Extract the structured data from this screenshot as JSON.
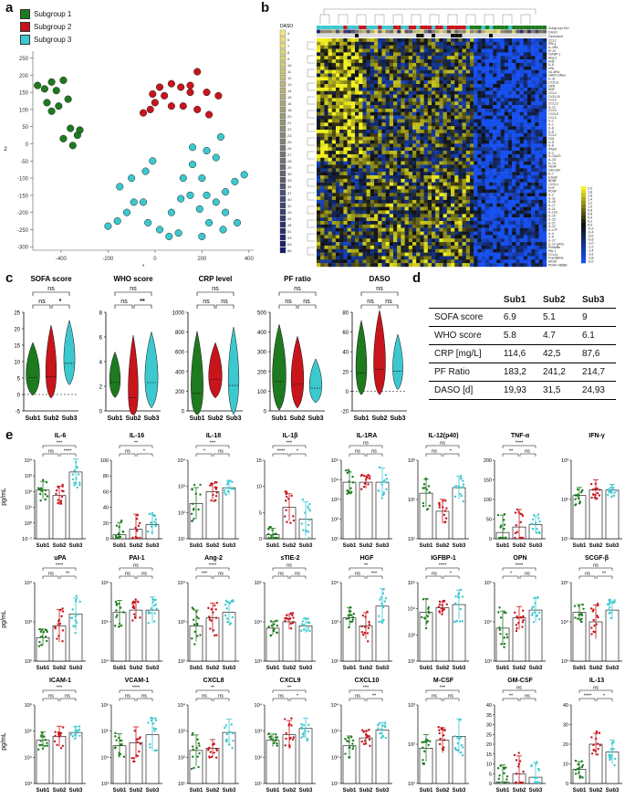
{
  "panel_labels": {
    "a": "a",
    "b": "b",
    "c": "c",
    "d": "d",
    "e": "e"
  },
  "colors": {
    "sub1": "#1e7a1e",
    "sub2": "#c8141b",
    "sub3": "#3cc8cf"
  },
  "panel_a": {
    "legend": [
      "Subgroup 1",
      "Subgroup 2",
      "Subgroup 3"
    ],
    "xlabel": "1",
    "ylabel": "2",
    "xticks": [
      "-400",
      "-200",
      "0",
      "200",
      "400"
    ],
    "yticks": [
      "250",
      "200",
      "150",
      "100",
      "50",
      "0",
      "-50",
      "-100",
      "-150",
      "-200",
      "-250",
      "-300"
    ],
    "chart_data": {
      "type": "scatter",
      "xlim": [
        -520,
        420
      ],
      "ylim": [
        -310,
        270
      ],
      "series": [
        {
          "name": "Subgroup 1",
          "color": "#1e7a1e",
          "points": [
            [
              -500,
              170
            ],
            [
              -470,
              160
            ],
            [
              -440,
              180
            ],
            [
              -420,
              155
            ],
            [
              -460,
              120
            ],
            [
              -410,
              110
            ],
            [
              -440,
              95
            ],
            [
              -390,
              185
            ],
            [
              -370,
              130
            ],
            [
              -360,
              45
            ],
            [
              -330,
              25
            ],
            [
              -390,
              15
            ],
            [
              -350,
              -5
            ],
            [
              -320,
              40
            ]
          ]
        },
        {
          "name": "Subgroup 2",
          "color": "#c8141b",
          "points": [
            [
              -50,
              90
            ],
            [
              -20,
              100
            ],
            [
              0,
              120
            ],
            [
              -10,
              145
            ],
            [
              20,
              165
            ],
            [
              70,
              175
            ],
            [
              110,
              165
            ],
            [
              150,
              150
            ],
            [
              70,
              110
            ],
            [
              120,
              110
            ],
            [
              180,
              100
            ],
            [
              230,
              85
            ],
            [
              270,
              140
            ],
            [
              220,
              150
            ],
            [
              180,
              210
            ],
            [
              150,
              170
            ],
            [
              40,
              140
            ]
          ]
        },
        {
          "name": "Subgroup 3",
          "color": "#3cc8cf",
          "points": [
            [
              -10,
              -50
            ],
            [
              -40,
              -80
            ],
            [
              -100,
              -100
            ],
            [
              -150,
              -125
            ],
            [
              -90,
              -170
            ],
            [
              -50,
              -170
            ],
            [
              -120,
              -200
            ],
            [
              -160,
              -225
            ],
            [
              -200,
              -240
            ],
            [
              -30,
              -230
            ],
            [
              20,
              -250
            ],
            [
              60,
              -270
            ],
            [
              100,
              -260
            ],
            [
              70,
              -200
            ],
            [
              110,
              -160
            ],
            [
              150,
              -150
            ],
            [
              120,
              -100
            ],
            [
              160,
              -60
            ],
            [
              200,
              -100
            ],
            [
              220,
              -150
            ],
            [
              190,
              -190
            ],
            [
              230,
              -230
            ],
            [
              290,
              -250
            ],
            [
              300,
              -200
            ],
            [
              260,
              -170
            ],
            [
              300,
              -140
            ],
            [
              340,
              -110
            ],
            [
              380,
              -90
            ],
            [
              260,
              -40
            ],
            [
              220,
              -20
            ],
            [
              280,
              20
            ],
            [
              350,
              -230
            ],
            [
              160,
              -10
            ],
            [
              200,
              -270
            ]
          ]
        }
      ]
    }
  },
  "panel_b": {
    "daso_title": "DASO",
    "daso_levels": [
      "4",
      "6",
      "7",
      "8",
      "9",
      "10",
      "11",
      "12",
      "13",
      "14",
      "15",
      "16",
      "18",
      "20",
      "21",
      "22",
      "23",
      "25",
      "26",
      "27",
      "28",
      "29",
      "30",
      "33",
      "34",
      "37",
      "40",
      "42",
      "43",
      "44",
      "48",
      "51",
      "53",
      "63",
      "66"
    ],
    "header_rows": [
      "Subgroup KIU",
      "DASO",
      "Deceased"
    ],
    "gene_labels": [
      "CCL2",
      "IFN-γ",
      "IL-1RA",
      "IP-10",
      "IGFBP-1",
      "Ang-2",
      "HGF",
      "IL-6",
      "uPA",
      "sIL-6Rα",
      "sHER-2/Neu",
      "IL-31",
      "CXCL5",
      "OPN",
      "NGF",
      "CCL4",
      "CXCL10",
      "CCL4",
      "CCL13",
      "IL-12",
      "CCL5",
      "CXCL9",
      "CCL3",
      "IL-1",
      "IL-1",
      "IL-8",
      "IL-8",
      "CCL2",
      "CD1",
      "IL-8",
      "IL-8",
      "IFNα2",
      "IL-2",
      "IL-12p70",
      "IL-15",
      "IL-7a",
      "VEGF",
      "GM-CSF",
      "IL-7",
      "b-NGF",
      "BDNF",
      "CXCL1",
      "FGF",
      "PDGF",
      "IL-2",
      "IL-11",
      "IL-16",
      "IL-17",
      "IL-21",
      "IL-12a",
      "IL-15",
      "IL-23",
      "IL-27",
      "IL-12",
      "IL-17F",
      "IL-4",
      "IL-9",
      "IL-17",
      "IL-12 (p40)",
      "Prolactin",
      "PAI-1",
      "CCL11",
      "Fractalkine",
      "MCSF",
      "PDGF-AB/BB"
    ],
    "colorbar_ticks": [
      "2,0",
      "1,8",
      "1,6",
      "1,4",
      "1,2",
      "1,0",
      "0,8",
      "0,6",
      "0,4",
      "0,2",
      "0,0",
      "-0,2",
      "-0,4",
      "-0,6",
      "-0,8",
      "-1,0",
      "-1,2",
      "-1,4",
      "-1,6",
      "-1,8",
      "-2,0"
    ],
    "colors": {
      "high": "#f3f021",
      "mid": "#101010",
      "low": "#1650f0"
    }
  },
  "panel_c": {
    "xcats": [
      "Sub1",
      "Sub2",
      "Sub3"
    ],
    "charts": [
      {
        "title": "SOFA score",
        "yticks": [
          "25",
          "20",
          "15",
          "10",
          "5",
          "0",
          "-5"
        ],
        "ylim": [
          -5,
          25
        ],
        "top": "ns",
        "left": "ns",
        "right": "*"
      },
      {
        "title": "WHO score",
        "yticks": [
          "8",
          "6",
          "4",
          "2",
          "0"
        ],
        "ylim": [
          0,
          8
        ],
        "top": "ns",
        "left": "ns",
        "right": "**"
      },
      {
        "title": "CRP level",
        "yticks": [
          "1000",
          "800",
          "600",
          "400",
          "200",
          "0"
        ],
        "ylim": [
          0,
          1000
        ],
        "top": "ns",
        "left": "ns",
        "right": "ns"
      },
      {
        "title": "PF ratio",
        "yticks": [
          "500",
          "400",
          "300",
          "200",
          "100",
          "0"
        ],
        "ylim": [
          0,
          500
        ],
        "top": "ns",
        "left": "ns",
        "right": "ns"
      },
      {
        "title": "DASO",
        "yticks": [
          "80",
          "60",
          "40",
          "20",
          "0",
          "-20"
        ],
        "ylim": [
          -20,
          80
        ],
        "top": "ns",
        "left": "ns",
        "right": "ns"
      }
    ]
  },
  "panel_d": {
    "headers": [
      "",
      "Sub1",
      "Sub2",
      "Sub3"
    ],
    "rows": [
      [
        "SOFA score",
        "6.9",
        "5.1",
        "9"
      ],
      [
        "WHO score",
        "5.8",
        "4.7",
        "6.1"
      ],
      [
        "CRP [mg/L]",
        "114,6",
        "42,5",
        "87,6"
      ],
      [
        "PF Ratio",
        "183,2",
        "241,2",
        "214,7"
      ],
      [
        "DASO [d]",
        "19,93",
        "31,5",
        "24,93"
      ]
    ]
  },
  "panel_e": {
    "ylabel": "pg/mL",
    "xcats": [
      "Sub1",
      "Sub2",
      "Sub3"
    ],
    "rows": [
      [
        {
          "title": "IL-6",
          "yticks": [
            "10⁴",
            "10³",
            "10²",
            "10¹",
            "10⁰",
            "10⁻¹"
          ],
          "bars": [
            0.62,
            0.55,
            0.85
          ],
          "top": "***",
          "left": "ns",
          "right": "****"
        },
        {
          "title": "IL-16",
          "yticks": [
            "100",
            "80",
            "60",
            "40",
            "20",
            "0"
          ],
          "bars": [
            0.05,
            0.12,
            0.18
          ],
          "top": "**",
          "left": "ns",
          "right": "*"
        },
        {
          "title": "IL-18",
          "yticks": [
            "10⁴",
            "10³",
            "10²",
            "10¹"
          ],
          "bars": [
            0.45,
            0.6,
            0.65
          ],
          "top": "***",
          "left": "*",
          "right": "ns"
        },
        {
          "title": "IL-1β",
          "yticks": [
            "15",
            "10",
            "5",
            "0"
          ],
          "bars": [
            0.05,
            0.4,
            0.25
          ],
          "top": "***",
          "left": "****",
          "right": "*"
        },
        {
          "title": "IL-1RA",
          "yticks": [
            "10⁵",
            "10⁴",
            "10³",
            "10²",
            "10¹"
          ],
          "bars": [
            0.72,
            0.72,
            0.72
          ],
          "top": "ns",
          "left": "ns",
          "right": "ns"
        },
        {
          "title": "IL-12(p40)",
          "yticks": [
            "10³",
            "10²",
            "10¹"
          ],
          "bars": [
            0.58,
            0.35,
            0.65
          ],
          "top": "ns",
          "left": "ns",
          "right": "*"
        },
        {
          "title": "TNF-α",
          "yticks": [
            "200",
            "150",
            "100",
            "50",
            "0"
          ],
          "bars": [
            0.08,
            0.15,
            0.18
          ],
          "top": "****",
          "left": "**",
          "right": "ns"
        },
        {
          "title": "IFN-γ",
          "yticks": [
            "10³",
            "10²",
            "10¹"
          ],
          "bars": [
            0.55,
            0.62,
            0.62
          ],
          "top": "",
          "left": "",
          "right": ""
        }
      ],
      [
        {
          "title": "uPA",
          "yticks": [
            "10⁴",
            "10³",
            "10²"
          ],
          "bars": [
            0.3,
            0.45,
            0.6
          ],
          "top": "****",
          "left": "ns",
          "right": "**"
        },
        {
          "title": "PAI-1",
          "yticks": [
            "10⁶",
            "10⁵",
            "10⁴"
          ],
          "bars": [
            0.62,
            0.65,
            0.65
          ],
          "top": "ns",
          "left": "ns",
          "right": "ns"
        },
        {
          "title": "Ang-2",
          "yticks": [
            "10⁴",
            "10³",
            "10²"
          ],
          "bars": [
            0.45,
            0.55,
            0.62
          ],
          "top": "****",
          "left": "***",
          "right": "ns"
        },
        {
          "title": "sTIE-2",
          "yticks": [
            "10⁵",
            "10⁴",
            "10³"
          ],
          "bars": [
            0.42,
            0.5,
            0.45
          ],
          "top": "ns",
          "left": "ns",
          "right": "ns"
        },
        {
          "title": "HGF",
          "yticks": [
            "10⁴",
            "10³",
            "10²"
          ],
          "bars": [
            0.55,
            0.45,
            0.7
          ],
          "top": "**",
          "left": "ns",
          "right": "***"
        },
        {
          "title": "IGFBP-1",
          "yticks": [
            "10⁵",
            "10⁴",
            "10³",
            "10²"
          ],
          "bars": [
            0.62,
            0.68,
            0.72
          ],
          "top": "****",
          "left": "ns",
          "right": "*"
        },
        {
          "title": "OPN",
          "yticks": [
            "10⁵",
            "10⁴",
            "10³"
          ],
          "bars": [
            0.42,
            0.55,
            0.65
          ],
          "top": "****",
          "left": "*",
          "right": "ns"
        },
        {
          "title": "SCGF-β",
          "yticks": [
            "10⁵",
            "10⁴",
            "10³"
          ],
          "bars": [
            0.62,
            0.5,
            0.65
          ],
          "top": "ns",
          "left": "ns",
          "right": "**"
        }
      ],
      [
        {
          "title": "ICAM-1",
          "yticks": [
            "10⁶",
            "10⁵",
            "10⁴",
            "10³"
          ],
          "bars": [
            0.55,
            0.6,
            0.65
          ],
          "top": "***",
          "left": "ns",
          "right": "ns"
        },
        {
          "title": "VCAM-1",
          "yticks": [
            "10⁶",
            "10⁵",
            "10⁴",
            "10³"
          ],
          "bars": [
            0.48,
            0.52,
            0.62
          ],
          "top": "****",
          "left": "ns",
          "right": "ns"
        },
        {
          "title": "CXCL8",
          "yticks": [
            "10⁴",
            "10³",
            "10²",
            "10¹"
          ],
          "bars": [
            0.42,
            0.45,
            0.65
          ],
          "top": "**",
          "left": "ns",
          "right": "ns"
        },
        {
          "title": "CXCL9",
          "yticks": [
            "10⁴",
            "10³",
            "10²",
            "10¹"
          ],
          "bars": [
            0.55,
            0.62,
            0.7
          ],
          "top": "**",
          "left": "ns",
          "right": "*"
        },
        {
          "title": "CXCL10",
          "yticks": [
            "10⁴",
            "10³",
            "10²",
            "10¹"
          ],
          "bars": [
            0.48,
            0.58,
            0.68
          ],
          "top": "***",
          "left": "ns",
          "right": "**"
        },
        {
          "title": "M-CSF",
          "yticks": [
            "10³",
            "10²",
            "10¹"
          ],
          "bars": [
            0.45,
            0.55,
            0.6
          ],
          "top": "***",
          "left": "ns",
          "right": "ns"
        },
        {
          "title": "GM-CSF",
          "yticks": [
            "40",
            "35",
            "30",
            "25",
            "20",
            "15",
            "10",
            "5",
            "0"
          ],
          "bars": [
            0.02,
            0.12,
            0.08
          ],
          "top": "ns",
          "left": "**",
          "right": "ns"
        },
        {
          "title": "IL-13",
          "yticks": [
            "40",
            "30",
            "20",
            "10",
            "0"
          ],
          "bars": [
            0.18,
            0.5,
            0.4
          ],
          "top": "ns",
          "left": "****",
          "right": "*"
        }
      ]
    ]
  }
}
